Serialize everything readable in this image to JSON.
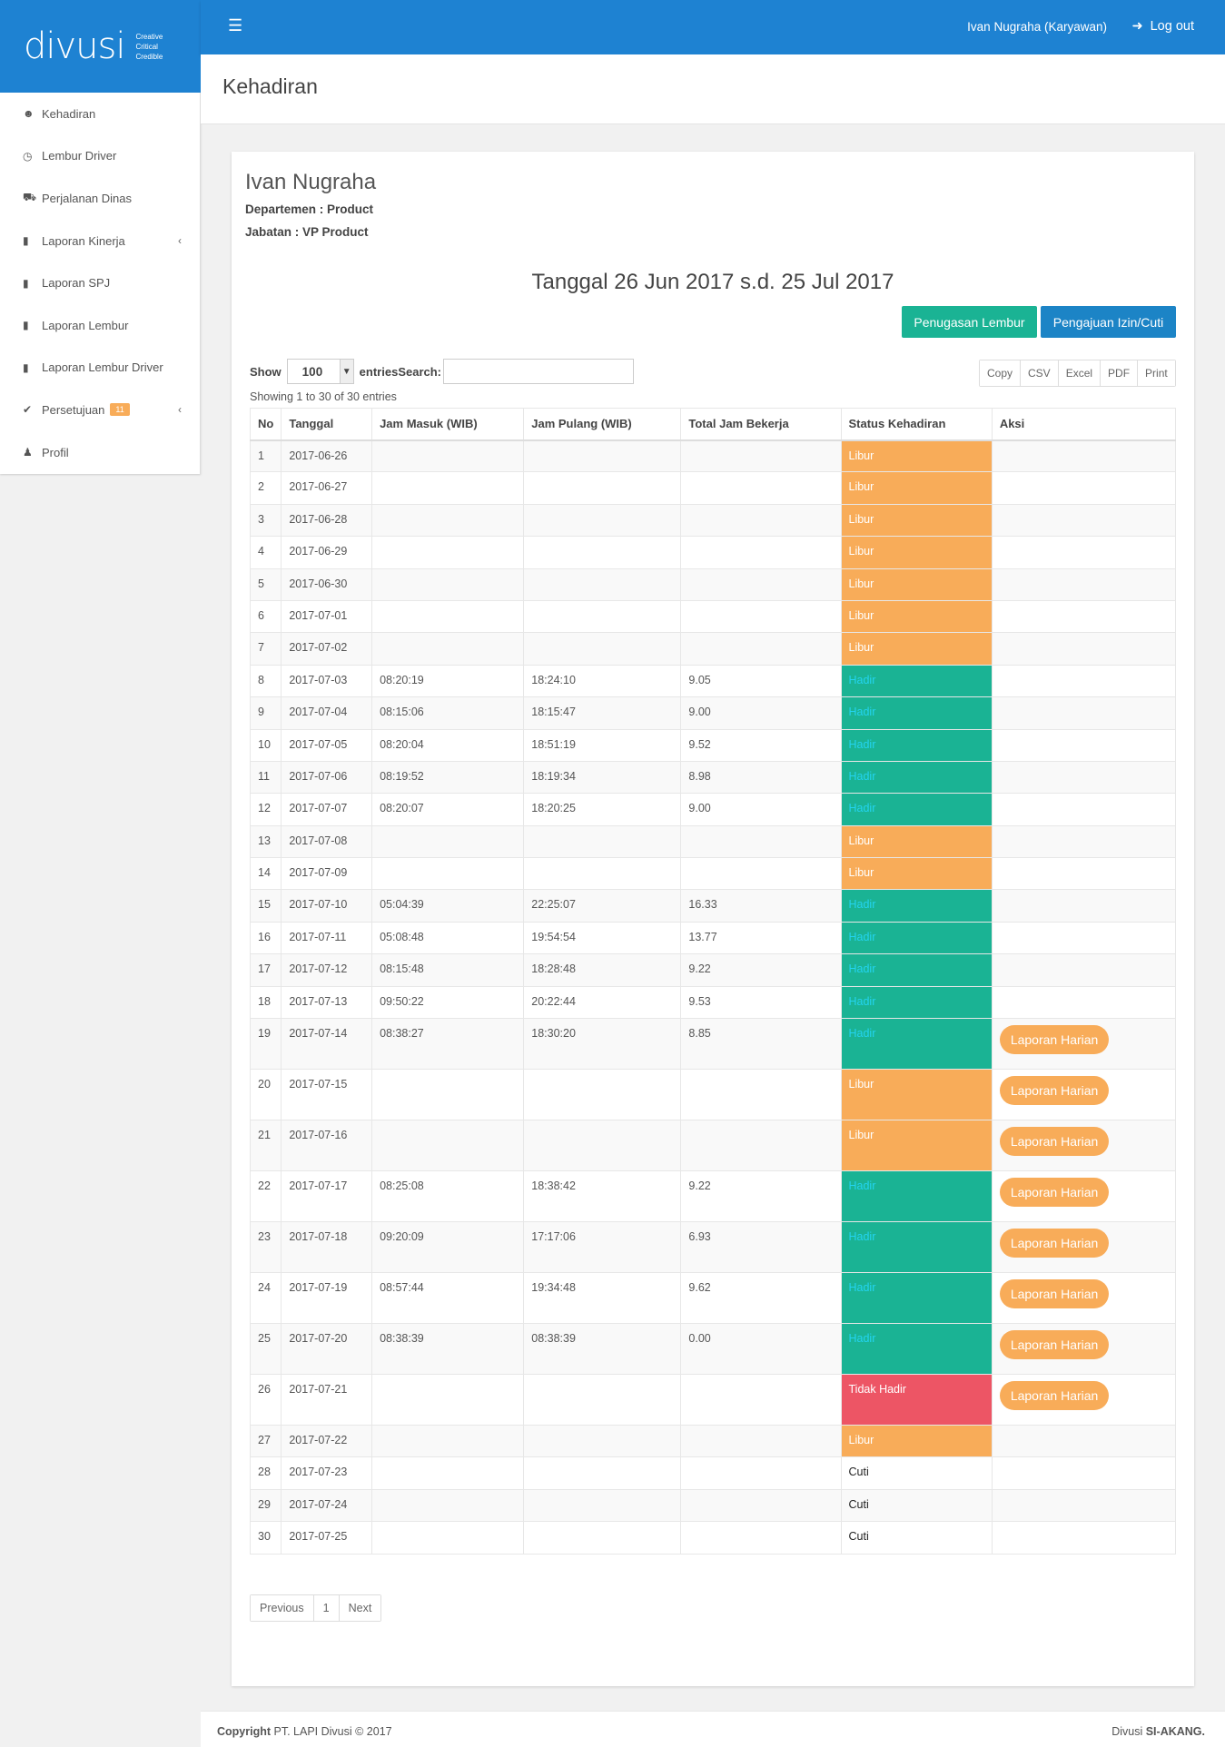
{
  "brand": {
    "wordmark": "divusi",
    "tagline": [
      "Creative",
      "Critical",
      "Credible"
    ]
  },
  "topbar": {
    "user": "Ivan Nugraha (Karyawan)",
    "logout": "Log out"
  },
  "sidebar": {
    "items": [
      {
        "label": "Kehadiran",
        "icon": "users-icon"
      },
      {
        "label": "Lembur Driver",
        "icon": "clock-icon"
      },
      {
        "label": "Perjalanan Dinas",
        "icon": "car-icon"
      },
      {
        "label": "Laporan Kinerja",
        "icon": "file-icon"
      },
      {
        "label": "Laporan SPJ",
        "icon": "file-icon"
      },
      {
        "label": "Laporan Lembur",
        "icon": "file-icon"
      },
      {
        "label": "Laporan Lembur Driver",
        "icon": "file-icon"
      },
      {
        "label": "Persetujuan",
        "icon": "check-icon",
        "badge": "11"
      },
      {
        "label": "Profil",
        "icon": "user-icon"
      }
    ]
  },
  "page": {
    "title": "Kehadiran"
  },
  "employee": {
    "name": "Ivan Nugraha",
    "department": "Departemen : Product",
    "position": "Jabatan : VP Product"
  },
  "period": "Tanggal 26 Jun 2017 s.d. 25 Jul 2017",
  "buttons": {
    "overtime": "Penugasan Lembur",
    "leave": "Pengajuan Izin/Cuti"
  },
  "table_controls": {
    "show_label": "Show",
    "page_length": "100",
    "entries_label": "entries",
    "search_label": "Search:",
    "info": "Showing 1 to 30 of 30 entries",
    "export": [
      "Copy",
      "CSV",
      "Excel",
      "PDF",
      "Print"
    ]
  },
  "table": {
    "headers": [
      "No",
      "Tanggal",
      "Jam Masuk (WIB)",
      "Jam Pulang (WIB)",
      "Total Jam Bekerja",
      "Status Kehadiran",
      "Aksi"
    ],
    "action_label": "Laporan Harian",
    "rows": [
      [
        "1",
        "2017-06-26",
        "",
        "",
        "",
        "Libur",
        ""
      ],
      [
        "2",
        "2017-06-27",
        "",
        "",
        "",
        "Libur",
        ""
      ],
      [
        "3",
        "2017-06-28",
        "",
        "",
        "",
        "Libur",
        ""
      ],
      [
        "4",
        "2017-06-29",
        "",
        "",
        "",
        "Libur",
        ""
      ],
      [
        "5",
        "2017-06-30",
        "",
        "",
        "",
        "Libur",
        ""
      ],
      [
        "6",
        "2017-07-01",
        "",
        "",
        "",
        "Libur",
        ""
      ],
      [
        "7",
        "2017-07-02",
        "",
        "",
        "",
        "Libur",
        ""
      ],
      [
        "8",
        "2017-07-03",
        "08:20:19",
        "18:24:10",
        "9.05",
        "Hadir",
        ""
      ],
      [
        "9",
        "2017-07-04",
        "08:15:06",
        "18:15:47",
        "9.00",
        "Hadir",
        ""
      ],
      [
        "10",
        "2017-07-05",
        "08:20:04",
        "18:51:19",
        "9.52",
        "Hadir",
        ""
      ],
      [
        "11",
        "2017-07-06",
        "08:19:52",
        "18:19:34",
        "8.98",
        "Hadir",
        ""
      ],
      [
        "12",
        "2017-07-07",
        "08:20:07",
        "18:20:25",
        "9.00",
        "Hadir",
        ""
      ],
      [
        "13",
        "2017-07-08",
        "",
        "",
        "",
        "Libur",
        ""
      ],
      [
        "14",
        "2017-07-09",
        "",
        "",
        "",
        "Libur",
        ""
      ],
      [
        "15",
        "2017-07-10",
        "05:04:39",
        "22:25:07",
        "16.33",
        "Hadir",
        ""
      ],
      [
        "16",
        "2017-07-11",
        "05:08:48",
        "19:54:54",
        "13.77",
        "Hadir",
        ""
      ],
      [
        "17",
        "2017-07-12",
        "08:15:48",
        "18:28:48",
        "9.22",
        "Hadir",
        ""
      ],
      [
        "18",
        "2017-07-13",
        "09:50:22",
        "20:22:44",
        "9.53",
        "Hadir",
        ""
      ],
      [
        "19",
        "2017-07-14",
        "08:38:27",
        "18:30:20",
        "8.85",
        "Hadir",
        "Laporan Harian"
      ],
      [
        "20",
        "2017-07-15",
        "",
        "",
        "",
        "Libur",
        "Laporan Harian"
      ],
      [
        "21",
        "2017-07-16",
        "",
        "",
        "",
        "Libur",
        "Laporan Harian"
      ],
      [
        "22",
        "2017-07-17",
        "08:25:08",
        "18:38:42",
        "9.22",
        "Hadir",
        "Laporan Harian"
      ],
      [
        "23",
        "2017-07-18",
        "09:20:09",
        "17:17:06",
        "6.93",
        "Hadir",
        "Laporan Harian"
      ],
      [
        "24",
        "2017-07-19",
        "08:57:44",
        "19:34:48",
        "9.62",
        "Hadir",
        "Laporan Harian"
      ],
      [
        "25",
        "2017-07-20",
        "08:38:39",
        "08:38:39",
        "0.00",
        "Hadir",
        "Laporan Harian"
      ],
      [
        "26",
        "2017-07-21",
        "",
        "",
        "",
        "Tidak Hadir",
        "Laporan Harian"
      ],
      [
        "27",
        "2017-07-22",
        "",
        "",
        "",
        "Libur",
        ""
      ],
      [
        "28",
        "2017-07-23",
        "",
        "",
        "",
        "Cuti",
        ""
      ],
      [
        "29",
        "2017-07-24",
        "",
        "",
        "",
        "Cuti",
        ""
      ],
      [
        "30",
        "2017-07-25",
        "",
        "",
        "",
        "Cuti",
        ""
      ]
    ]
  },
  "pagination": {
    "previous": "Previous",
    "current": "1",
    "next": "Next"
  },
  "footer": {
    "copyright_bold": "Copyright",
    "copyright": "PT. LAPI Divusi © 2017",
    "app_prefix": "Divusi",
    "app_name": "SI-AKANG."
  },
  "colors": {
    "primary": "#1e82d2",
    "libur": "#f8ac59",
    "hadir": "#1ab394",
    "tidak_hadir": "#ed5565",
    "leave_button": "#1c84c6"
  }
}
